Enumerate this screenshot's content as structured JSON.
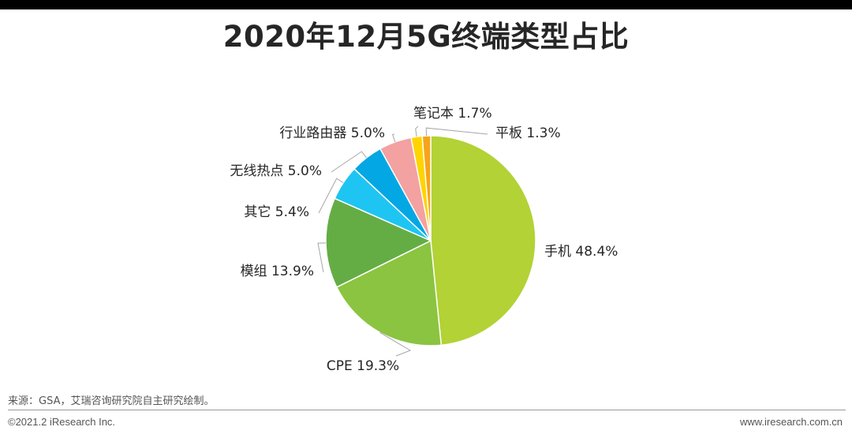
{
  "chart_data": {
    "type": "pie",
    "title": "2020年12月5G终端类型占比",
    "slices": [
      {
        "label": "手机",
        "value": 48.4,
        "value_text": "48.4%",
        "color": "#b2d235"
      },
      {
        "label": "CPE",
        "value": 19.3,
        "value_text": "19.3%",
        "color": "#8bc441"
      },
      {
        "label": "模组",
        "value": 13.9,
        "value_text": "13.9%",
        "color": "#64ad45"
      },
      {
        "label": "其它",
        "value": 5.4,
        "value_text": "5.4%",
        "color": "#1ec5f2"
      },
      {
        "label": "无线热点",
        "value": 5.0,
        "value_text": "5.0%",
        "color": "#03a7e3"
      },
      {
        "label": "行业路由器",
        "value": 5.0,
        "value_text": "5.0%",
        "color": "#f3a1a1"
      },
      {
        "label": "笔记本",
        "value": 1.7,
        "value_text": "1.7%",
        "color": "#ffd400"
      },
      {
        "label": "平板",
        "value": 1.3,
        "value_text": "1.3%",
        "color": "#f7a419"
      }
    ],
    "legend": "none",
    "labels": "outside with leader lines"
  },
  "footer": {
    "source": "来源：GSA，艾瑞咨询研究院自主研究绘制。",
    "copyright": "©2021.2 iResearch Inc.",
    "website": "www.iresearch.com.cn"
  }
}
